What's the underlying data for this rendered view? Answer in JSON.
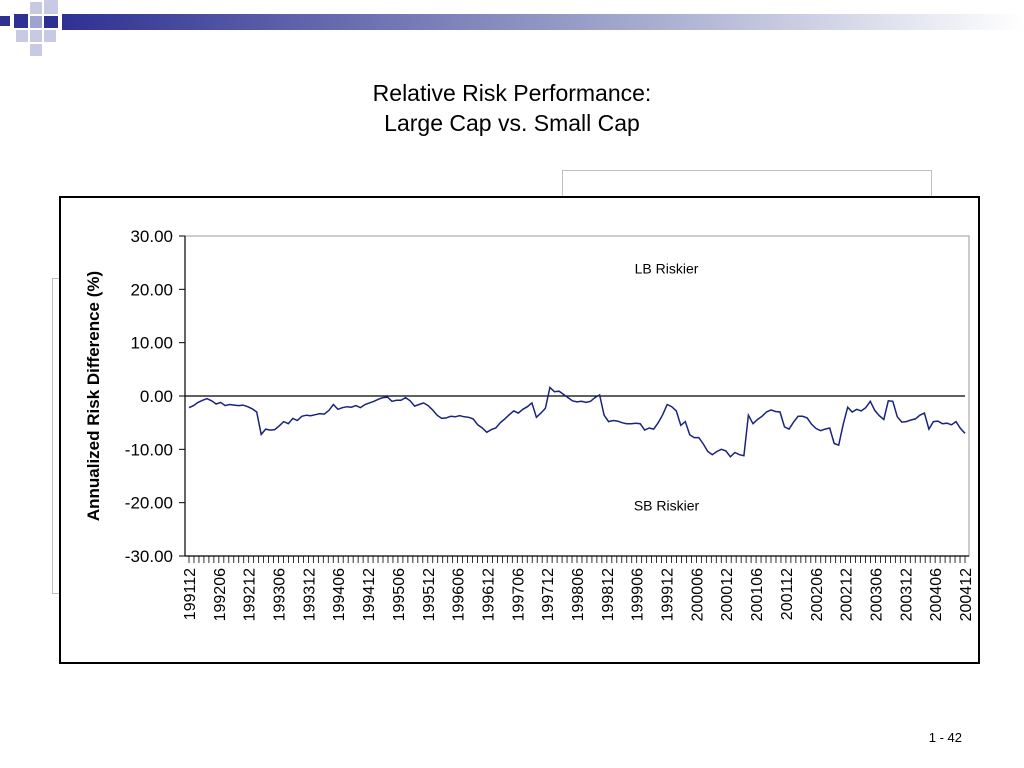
{
  "slide": {
    "title_line1": "Relative Risk Performance:",
    "title_line2": "Large Cap vs. Small Cap",
    "page_number": "1 - 42",
    "banner_color": "#2e3192"
  },
  "chart_data": {
    "type": "line",
    "title": "",
    "xlabel": "",
    "ylabel": "Annualized Risk Difference (%)",
    "ylim": [
      -30,
      30
    ],
    "yticks": [
      "30.00",
      "20.00",
      "10.00",
      "0.00",
      "-10.00",
      "-20.00",
      "-30.00"
    ],
    "ytick_values": [
      30,
      20,
      10,
      0,
      -10,
      -20,
      -30
    ],
    "xtick_labels": [
      "199112",
      "199206",
      "199212",
      "199306",
      "199312",
      "199406",
      "199412",
      "199506",
      "199512",
      "199606",
      "199612",
      "199706",
      "199712",
      "199806",
      "199812",
      "199906",
      "199912",
      "200006",
      "200012",
      "200106",
      "200112",
      "200206",
      "200212",
      "200306",
      "200312",
      "200406",
      "200412"
    ],
    "x_start": "199112",
    "x_end": "200412",
    "annotations": [
      {
        "text": "LB Riskier",
        "x": "199912",
        "y": 23
      },
      {
        "text": "SB Riskier",
        "x": "199912",
        "y": -21.5
      }
    ],
    "reference_line_y": 0,
    "grid": false,
    "legend": "none",
    "line_color": "#1a237e",
    "series": [
      {
        "values": [
          -2.2,
          -1.8,
          -1.2,
          -0.8,
          -0.5,
          -0.9,
          -1.5,
          -1.2,
          -1.8,
          -1.6,
          -1.7,
          -1.8,
          -1.7,
          -2.0,
          -2.4,
          -3.0,
          -7.2,
          -6.2,
          -6.4,
          -6.3,
          -5.6,
          -4.8,
          -5.2,
          -4.2,
          -4.6,
          -3.8,
          -3.6,
          -3.7,
          -3.5,
          -3.3,
          -3.4,
          -2.7,
          -1.6,
          -2.5,
          -2.2,
          -2.0,
          -2.1,
          -1.8,
          -2.2,
          -1.6,
          -1.3,
          -1.0,
          -0.6,
          -0.3,
          -0.2,
          -1.0,
          -0.8,
          -0.8,
          -0.3,
          -0.9,
          -1.9,
          -1.6,
          -1.3,
          -1.8,
          -2.6,
          -3.6,
          -4.2,
          -4.1,
          -3.8,
          -3.9,
          -3.7,
          -3.9,
          -4.0,
          -4.3,
          -5.4,
          -6.0,
          -6.8,
          -6.3,
          -6.0,
          -5.0,
          -4.3,
          -3.5,
          -2.8,
          -3.2,
          -2.5,
          -2.0,
          -1.3,
          -4.0,
          -3.2,
          -2.3,
          1.6,
          0.8,
          0.9,
          0.3,
          -0.3,
          -0.9,
          -1.1,
          -1.0,
          -1.2,
          -1.0,
          -0.3,
          0.2,
          -3.6,
          -4.8,
          -4.6,
          -4.7,
          -5.0,
          -5.2,
          -5.2,
          -5.1,
          -5.2,
          -6.4,
          -6.0,
          -6.2,
          -5.0,
          -3.5,
          -1.6,
          -2.0,
          -2.8,
          -5.5,
          -4.8,
          -7.3,
          -7.8,
          -7.8,
          -9.0,
          -10.4,
          -11.0,
          -10.4,
          -10.0,
          -10.3,
          -11.4,
          -10.6,
          -11.0,
          -11.2,
          -3.6,
          -5.2,
          -4.4,
          -3.8,
          -3.0,
          -2.6,
          -2.9,
          -3.0,
          -5.8,
          -6.2,
          -4.9,
          -3.8,
          -3.8,
          -4.1,
          -5.3,
          -6.1,
          -6.5,
          -6.2,
          -6.0,
          -8.9,
          -9.2,
          -5.3,
          -2.1,
          -3.0,
          -2.5,
          -2.8,
          -2.2,
          -1.0,
          -2.7,
          -3.7,
          -4.4,
          -0.9,
          -1.0,
          -3.9,
          -4.9,
          -4.8,
          -4.5,
          -4.3,
          -3.6,
          -3.2,
          -6.2,
          -4.8,
          -4.7,
          -5.2,
          -5.1,
          -5.4,
          -4.8,
          -6.1,
          -7.0
        ]
      }
    ]
  }
}
